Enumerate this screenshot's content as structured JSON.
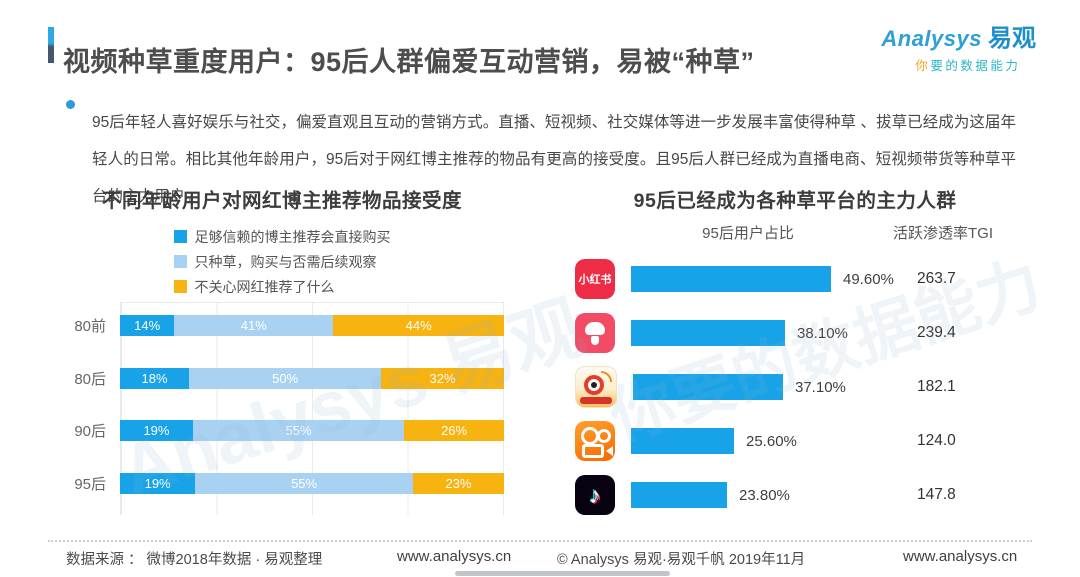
{
  "header": {
    "title": "视频种草重度用户：95后人群偏爱互动营销，易被“种草”",
    "logo": {
      "brand_en": "Analysys",
      "brand_cn": "易观",
      "tagline_first": "你",
      "tagline_rest": "要的数据能力"
    }
  },
  "summary": {
    "text": "95后年轻人喜好娱乐与社交，偏爱直观且互动的营销方式。直播、短视频、社交媒体等进一步发展丰富使得种草 、拔草已经成为这届年轻人的日常。相比其他年龄用户，95后对于网红博主推荐的物品有更高的接受度。且95后人群已经成为直播电商、短视频带货等种草平台的主力用户。"
  },
  "chart_data": [
    {
      "type": "bar",
      "variant": "horizontal-stacked",
      "title": "不同年龄用户对网红博主推荐物品接受度",
      "categories": [
        "80前",
        "80后",
        "90后",
        "95后"
      ],
      "series": [
        {
          "name": "足够信赖的博主推荐会直接购买",
          "color": "#18a3e8",
          "values": [
            14,
            18,
            19,
            19
          ]
        },
        {
          "name": "只种草，购买与否需后续观察",
          "color": "#a9d2f2",
          "values": [
            41,
            50,
            55,
            55
          ]
        },
        {
          "name": "不关心网红推荐了什么",
          "color": "#f7b310",
          "values": [
            44,
            32,
            26,
            23
          ]
        }
      ],
      "value_suffix": "%",
      "xlim": [
        0,
        100
      ],
      "grid": "vertical-25pct",
      "legend_position": "top"
    },
    {
      "type": "bar",
      "variant": "horizontal",
      "title": "95后已经成为各种草平台的主力人群",
      "col1_header": "95后用户占比",
      "col2_header": "活跃渗透率TGI",
      "bar_color": "#18a3e8",
      "max_share_value": 49.6,
      "rows": [
        {
          "app": "小红书",
          "icon": "xiaohongshu-icon",
          "icon_label": "小红书",
          "share": "49.60%",
          "share_value": 49.6,
          "tgi": "263.7"
        },
        {
          "app": "蘑菇街",
          "icon": "mogujie-icon",
          "share": "38.10%",
          "share_value": 38.1,
          "tgi": "239.4"
        },
        {
          "app": "微博",
          "icon": "weibo-icon",
          "share": "37.10%",
          "share_value": 37.1,
          "tgi": "182.1"
        },
        {
          "app": "快手",
          "icon": "kuaishou-icon",
          "share": "25.60%",
          "share_value": 25.6,
          "tgi": "124.0"
        },
        {
          "app": "抖音",
          "icon": "douyin-icon",
          "share": "23.80%",
          "share_value": 23.8,
          "tgi": "147.8"
        }
      ]
    }
  ],
  "footer": {
    "source": "数据来源 ： 微博2018年数据 · 易观整理",
    "site_left": "www.analysys.cn",
    "copyright": "© Analysys 易观·易观千帆 2019年11月",
    "site_right": "www.analysys.cn"
  },
  "watermark": {
    "line1": "Analysys 易观",
    "line2": "你要的数据能力"
  }
}
